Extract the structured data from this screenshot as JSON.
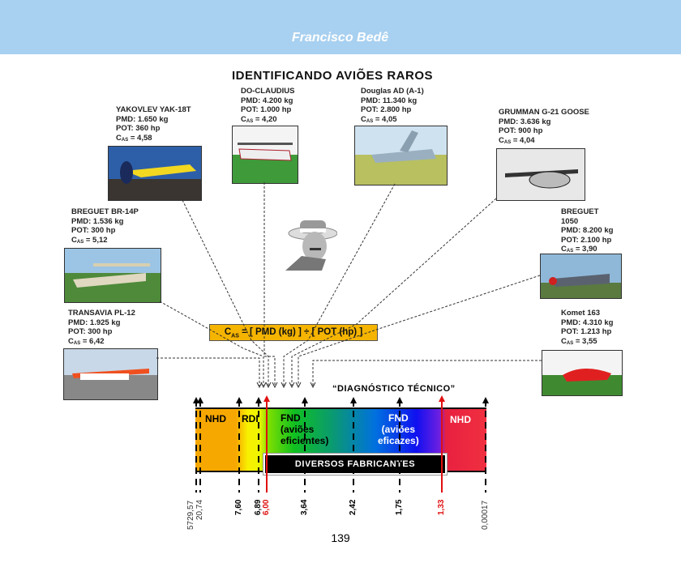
{
  "header": {
    "author": "Francisco Bedê",
    "background": "#a8d0f0"
  },
  "title": "IDENTIFICANDO AVIÕES RAROS",
  "aircraft": [
    {
      "name": "YAKOVLEV YAK-18T",
      "pmd": "PMD: 1.650 kg",
      "pot": "POT: 360 hp",
      "cas": "= 4,58"
    },
    {
      "name": "DO-CLAUDIUS",
      "pmd": "PMD: 4.200 kg",
      "pot": "POT: 1.000 hp",
      "cas": "=  4,20"
    },
    {
      "name": "Douglas AD (A-1)",
      "pmd": "PMD: 11.340 kg",
      "pot": "POT:  2.800  hp",
      "cas": "= 4,05"
    },
    {
      "name": "GRUMMAN G-21 GOOSE",
      "pmd": "PMD:  3.636 kg",
      "pot": "POT:   900 hp",
      "cas": "=  4,04"
    },
    {
      "name": "BREGUET   BR-14P",
      "pmd": "PMD: 1.536 kg",
      "pot": "POT: 300 hp",
      "cas": "=  5,12"
    },
    {
      "name": "BREGUET 1050",
      "pmd": "PMD: 8.200 kg",
      "pot": "POT: 2.100 hp",
      "cas": "=  3,90"
    },
    {
      "name": "TRANSAVIA PL-12",
      "pmd": "PMD: 1.925 kg",
      "pot": "POT: 300 hp",
      "cas": "=  6,42"
    },
    {
      "name": "Komet 163",
      "pmd": "PMD:  4.310 kg",
      "pot": "POT: 1.213 hp",
      "cas": "=  3,55"
    }
  ],
  "cas_symbol": {
    "c": "C",
    "sub": "AS"
  },
  "formula": {
    "lhs": "C",
    "sub": "AS",
    "rhs": " =  [ PMD (kg)  ]  ÷  [ POT (hp) ]"
  },
  "diagnostic_label": "“DIAGNÓSTICO  TÉCNICO”",
  "zones": [
    {
      "label": "NHD",
      "color": "#000000"
    },
    {
      "label": "RDI",
      "color": "#000000"
    },
    {
      "label": "FND\n(aviões\neficientes)",
      "color": "#000000"
    },
    {
      "label": "FND\n(aviões\neficazes)",
      "color": "#ffffff"
    },
    {
      "label": "NHD",
      "color": "#ffffff"
    }
  ],
  "makers_label": "DIVERSOS    FABRICANTES",
  "scale_ticks": [
    {
      "label": "5729,57",
      "color": "#333333"
    },
    {
      "label": "20,74",
      "color": "#333333"
    },
    {
      "label": "7,60",
      "color": "#000000"
    },
    {
      "label": "6,89",
      "color": "#000000"
    },
    {
      "label": "6,00",
      "color": "#e01010"
    },
    {
      "label": "3,64",
      "color": "#000000"
    },
    {
      "label": "2,42",
      "color": "#000000"
    },
    {
      "label": "1,75",
      "color": "#000000"
    },
    {
      "label": "1,33",
      "color": "#e01010"
    },
    {
      "label": "0,00017",
      "color": "#333333"
    }
  ],
  "page_number": "139"
}
